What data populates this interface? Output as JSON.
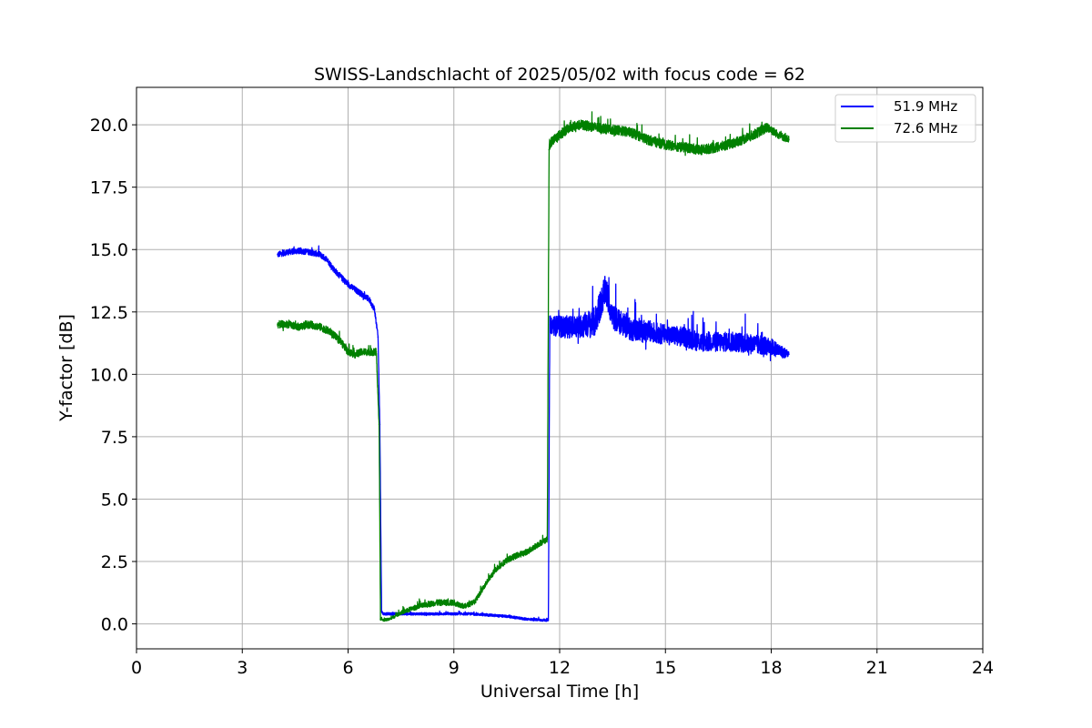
{
  "chart_data": {
    "type": "line",
    "title": "SWISS-Landschlacht of 2025/05/02 with focus code = 62",
    "xlabel": "Universal Time [h]",
    "ylabel": "Y-factor [dB]",
    "xlim": [
      0,
      24
    ],
    "ylim": [
      -1.0,
      21.5
    ],
    "xticks": [
      0,
      3,
      6,
      9,
      12,
      15,
      18,
      21,
      24
    ],
    "xtick_labels": [
      "0",
      "3",
      "6",
      "9",
      "12",
      "15",
      "18",
      "21",
      "24"
    ],
    "yticks": [
      0.0,
      2.5,
      5.0,
      7.5,
      10.0,
      12.5,
      15.0,
      17.5,
      20.0
    ],
    "ytick_labels": [
      "0.0",
      "2.5",
      "5.0",
      "7.5",
      "10.0",
      "12.5",
      "15.0",
      "17.5",
      "20.0"
    ],
    "grid": true,
    "legend_position": "top-right",
    "series": [
      {
        "name": "51.9 MHz",
        "color": "#0000ff",
        "x": [
          4.0,
          4.3,
          4.6,
          4.9,
          5.2,
          5.4,
          5.6,
          5.8,
          6.0,
          6.2,
          6.4,
          6.6,
          6.75,
          6.85,
          6.9,
          6.95,
          7.0,
          7.5,
          8.0,
          8.5,
          9.0,
          9.5,
          10.0,
          10.5,
          11.0,
          11.5,
          11.68,
          11.72,
          12.0,
          12.5,
          13.0,
          13.3,
          13.5,
          14.0,
          14.5,
          15.0,
          15.5,
          16.0,
          16.5,
          17.0,
          17.5,
          18.0,
          18.3,
          18.5
        ],
        "y": [
          14.8,
          14.9,
          14.95,
          14.9,
          14.8,
          14.6,
          14.2,
          13.9,
          13.6,
          13.4,
          13.2,
          13.0,
          12.6,
          11.5,
          8.0,
          0.5,
          0.4,
          0.4,
          0.4,
          0.4,
          0.4,
          0.4,
          0.35,
          0.3,
          0.2,
          0.15,
          0.15,
          12.0,
          11.9,
          11.9,
          12.1,
          13.4,
          12.3,
          11.8,
          11.7,
          11.6,
          11.5,
          11.3,
          11.3,
          11.3,
          11.2,
          11.1,
          10.9,
          10.8
        ],
        "noise": [
          0.12,
          0.12,
          0.12,
          0.12,
          0.12,
          0.12,
          0.12,
          0.12,
          0.12,
          0.12,
          0.12,
          0.12,
          0.12,
          0.1,
          0.1,
          0.05,
          0.05,
          0.05,
          0.05,
          0.05,
          0.05,
          0.05,
          0.05,
          0.05,
          0.05,
          0.05,
          0.05,
          0.35,
          0.45,
          0.45,
          0.6,
          0.6,
          0.5,
          0.45,
          0.45,
          0.4,
          0.4,
          0.4,
          0.4,
          0.4,
          0.4,
          0.35,
          0.25,
          0.15
        ]
      },
      {
        "name": "72.6 MHz",
        "color": "#008000",
        "x": [
          4.0,
          4.3,
          4.6,
          4.9,
          5.2,
          5.5,
          5.8,
          6.0,
          6.2,
          6.4,
          6.6,
          6.8,
          6.88,
          6.92,
          7.0,
          7.2,
          7.5,
          8.0,
          8.5,
          9.0,
          9.3,
          9.6,
          9.9,
          10.2,
          10.5,
          10.8,
          11.1,
          11.4,
          11.65,
          11.7,
          11.75,
          12.0,
          12.3,
          12.6,
          13.0,
          13.5,
          14.0,
          14.5,
          15.0,
          15.5,
          16.0,
          16.5,
          17.0,
          17.5,
          17.9,
          18.2,
          18.5
        ],
        "y": [
          12.0,
          12.0,
          11.9,
          12.0,
          11.9,
          11.7,
          11.3,
          10.9,
          10.8,
          10.9,
          10.9,
          10.9,
          8.0,
          0.2,
          0.15,
          0.2,
          0.45,
          0.7,
          0.85,
          0.85,
          0.7,
          0.9,
          1.6,
          2.2,
          2.55,
          2.75,
          2.9,
          3.2,
          3.4,
          19.0,
          19.3,
          19.6,
          19.9,
          20.0,
          19.9,
          19.8,
          19.7,
          19.4,
          19.2,
          19.1,
          19.0,
          19.1,
          19.3,
          19.6,
          19.9,
          19.6,
          19.4
        ],
        "noise": [
          0.15,
          0.15,
          0.15,
          0.15,
          0.15,
          0.15,
          0.15,
          0.15,
          0.15,
          0.15,
          0.15,
          0.15,
          0.1,
          0.05,
          0.05,
          0.05,
          0.08,
          0.1,
          0.12,
          0.12,
          0.1,
          0.1,
          0.1,
          0.12,
          0.12,
          0.12,
          0.12,
          0.12,
          0.12,
          0.2,
          0.2,
          0.2,
          0.2,
          0.2,
          0.2,
          0.2,
          0.2,
          0.2,
          0.2,
          0.2,
          0.2,
          0.2,
          0.2,
          0.2,
          0.2,
          0.15,
          0.15
        ]
      }
    ]
  }
}
